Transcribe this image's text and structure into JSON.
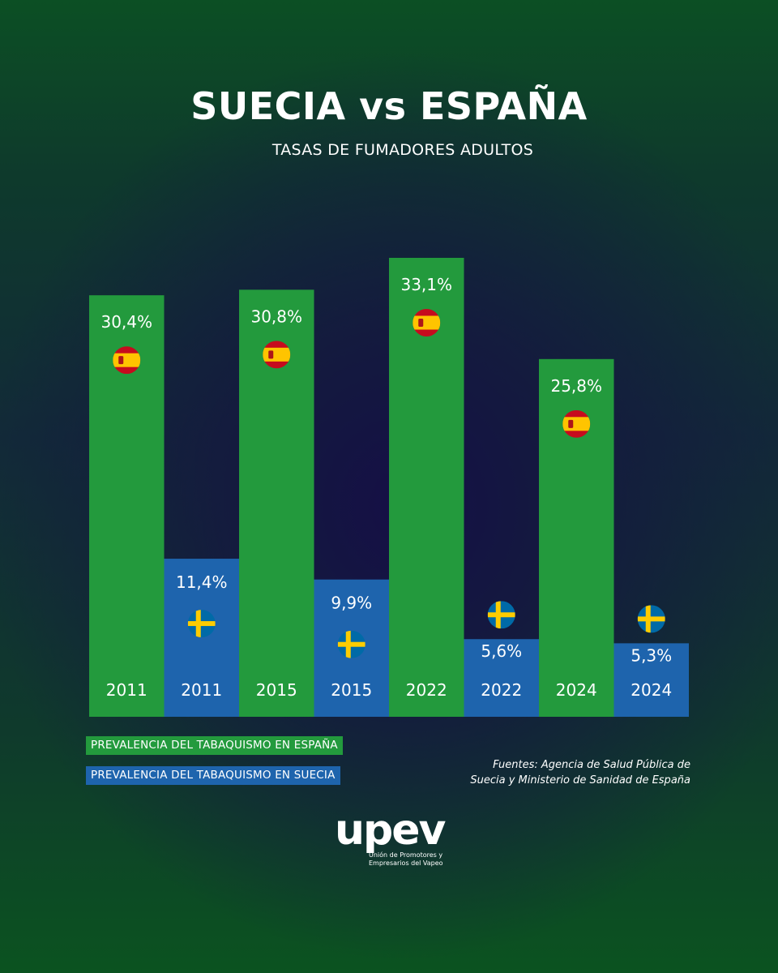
{
  "chart_data": {
    "type": "bar",
    "title": "SUECIA vs ESPAÑA",
    "subtitle": "TASAS DE FUMADORES ADULTOS",
    "categories": [
      "2011",
      "2015",
      "2022",
      "2024"
    ],
    "series": [
      {
        "name": "PREVALENCIA DEL TABAQUISMO EN ESPAÑA",
        "country": "spain",
        "values": [
          30.4,
          30.8,
          33.1,
          25.8
        ],
        "labels": [
          "30,4%",
          "30,8%",
          "33,1%",
          "25,8%"
        ],
        "color": "#239a3d",
        "icon": "spain-flag-icon"
      },
      {
        "name": "PREVALENCIA DEL TABAQUISMO EN SUECIA",
        "country": "sweden",
        "values": [
          11.4,
          9.9,
          5.6,
          5.3
        ],
        "labels": [
          "11,4%",
          "9,9%",
          "5,6%",
          "5,3%"
        ],
        "color": "#1e64ad",
        "icon": "sweden-flag-icon"
      }
    ],
    "xlabel": "",
    "ylabel": "",
    "ylim": [
      0,
      35
    ],
    "grid": false,
    "legend": "bottom-left"
  },
  "sources": {
    "line1": "Fuentes: Agencia de Salud Pública de",
    "line2": "Suecia y Ministerio de Sanidad de España"
  },
  "logo": {
    "word": "upev",
    "tagline1": "Unión de Promotores y",
    "tagline2": "Empresarios del Vapeo"
  },
  "colors": {
    "spain_red": "#c60b1e",
    "spain_yellow": "#ffc400",
    "sweden_blue": "#006aa7",
    "sweden_yellow": "#fecc00"
  }
}
